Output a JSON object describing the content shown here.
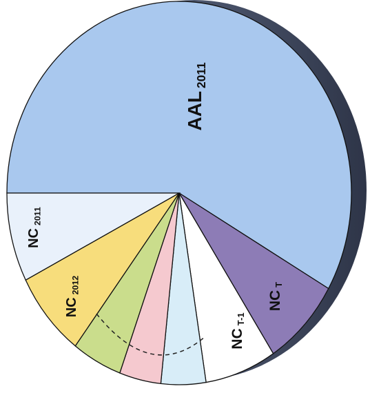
{
  "chart_data": {
    "type": "pie",
    "categories": [
      "AAL",
      "NC",
      "NC",
      null,
      null,
      null,
      "NC",
      "NC"
    ],
    "subscripts": [
      "2011",
      "T",
      "T-1",
      null,
      null,
      null,
      "2012",
      "2011"
    ],
    "values": [
      58.3,
      7.5,
      6.7,
      4.2,
      3.9,
      4.7,
      7.2,
      7.5
    ],
    "colors": [
      "#a9c8ee",
      "#8d7cb6",
      "#ffffff",
      "#d8edf8",
      "#f5c9cf",
      "#cadd8c",
      "#f7dd7c",
      "#e9f1fb"
    ]
  }
}
